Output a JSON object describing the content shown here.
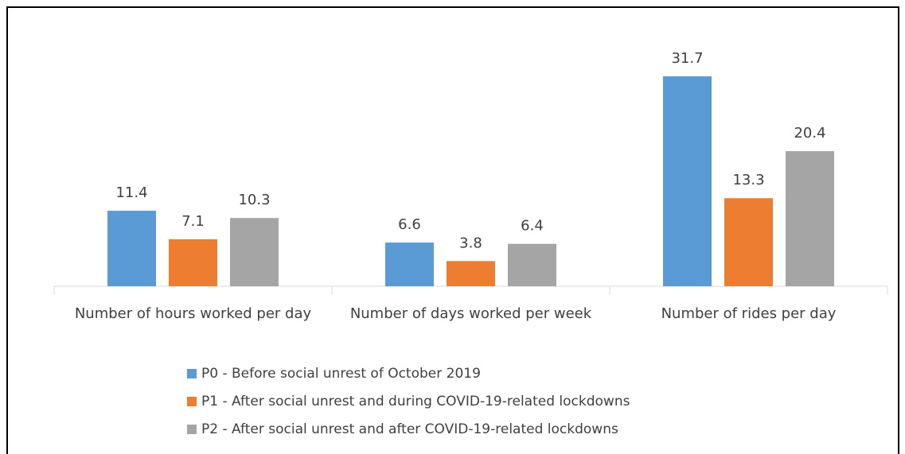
{
  "chart_data": {
    "type": "bar",
    "categories": [
      "Number of hours worked per day",
      "Number of days worked per week",
      "Number of rides per day"
    ],
    "series": [
      {
        "name": "P0 - Before social unrest of October 2019",
        "color": "#5b9bd5",
        "values": [
          11.4,
          6.6,
          31.7
        ]
      },
      {
        "name": "P1 - After social unrest and during COVID-19-related lockdowns",
        "color": "#ed7d31",
        "values": [
          7.1,
          3.8,
          13.3
        ]
      },
      {
        "name": "P2 - After social unrest and after COVID-19-related lockdowns",
        "color": "#a5a5a5",
        "values": [
          10.3,
          6.4,
          20.4
        ]
      }
    ],
    "legend": "bottom"
  }
}
